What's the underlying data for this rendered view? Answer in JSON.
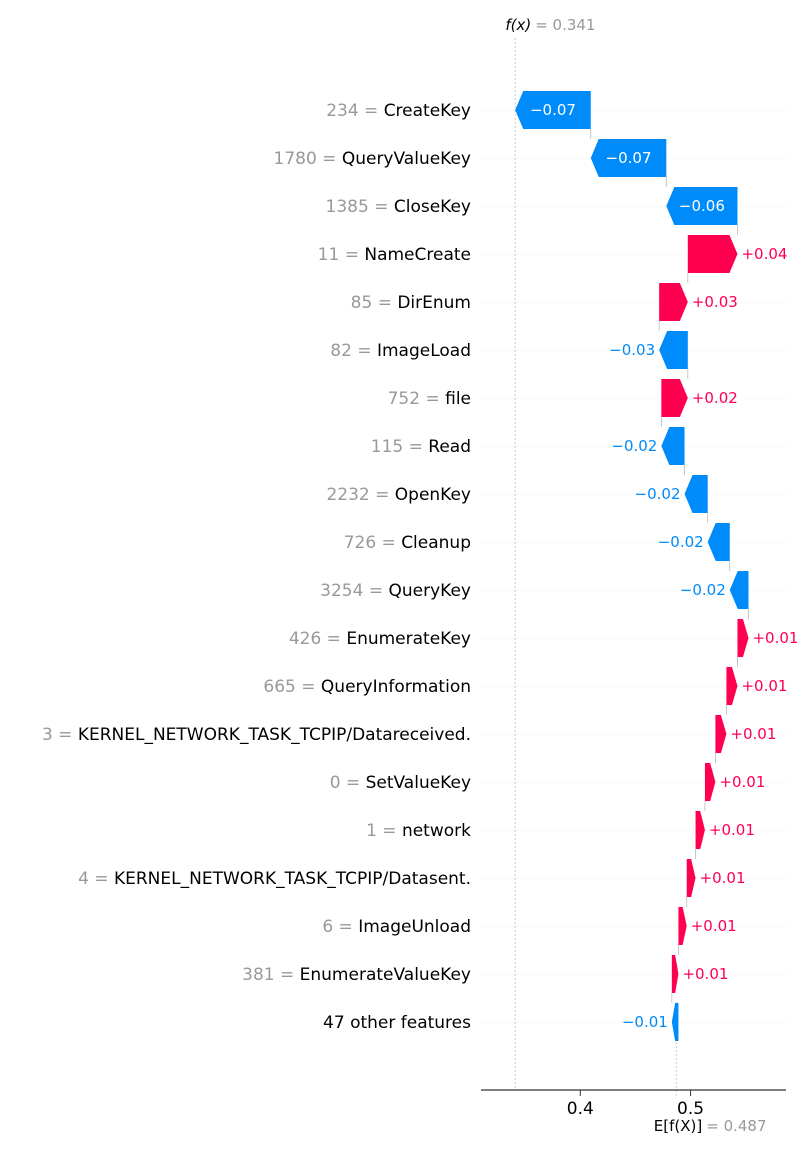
{
  "chart_data": {
    "type": "waterfall",
    "fx_label": "f(x)",
    "fx_value": "= 0.341",
    "efx_label": "E[f(X)]",
    "efx_value": "= 0.487",
    "fx_numeric": 0.341,
    "efx_numeric": 0.487,
    "xlim": [
      0.31,
      0.5865
    ],
    "x_ticks": [
      0.4,
      0.5
    ],
    "x_tick_labels": [
      "0.4",
      "0.5"
    ],
    "colors": {
      "positive": "#ff0051",
      "negative": "#008bfb",
      "value_text": "#999999"
    },
    "features": [
      {
        "value": "234",
        "name": "CreateKey",
        "contribution": -0.0685,
        "label": "−0.07"
      },
      {
        "value": "1780",
        "name": "QueryValueKey",
        "contribution": -0.0685,
        "label": "−0.07"
      },
      {
        "value": "1385",
        "name": "CloseKey",
        "contribution": -0.0645,
        "label": "−0.06"
      },
      {
        "value": "11",
        "name": "NameCreate",
        "contribution": 0.045,
        "label": "+0.04"
      },
      {
        "value": "85",
        "name": "DirEnum",
        "contribution": 0.026,
        "label": "+0.03"
      },
      {
        "value": "82",
        "name": "ImageLoad",
        "contribution": -0.026,
        "label": "−0.03"
      },
      {
        "value": "752",
        "name": "file",
        "contribution": 0.024,
        "label": "+0.02"
      },
      {
        "value": "115",
        "name": "Read",
        "contribution": -0.021,
        "label": "−0.02"
      },
      {
        "value": "2232",
        "name": "OpenKey",
        "contribution": -0.021,
        "label": "−0.02"
      },
      {
        "value": "726",
        "name": "Cleanup",
        "contribution": -0.02,
        "label": "−0.02"
      },
      {
        "value": "3254",
        "name": "QueryKey",
        "contribution": -0.017,
        "label": "−0.02"
      },
      {
        "value": "426",
        "name": "EnumerateKey",
        "contribution": 0.01,
        "label": "+0.01"
      },
      {
        "value": "665",
        "name": "QueryInformation",
        "contribution": 0.01,
        "label": "+0.01"
      },
      {
        "value": "3",
        "name": "KERNEL_NETWORK_TASK_TCPIP/Datareceived.",
        "contribution": 0.01,
        "label": "+0.01"
      },
      {
        "value": "0",
        "name": "SetValueKey",
        "contribution": 0.0095,
        "label": "+0.01"
      },
      {
        "value": "1",
        "name": "network",
        "contribution": 0.0085,
        "label": "+0.01"
      },
      {
        "value": "4",
        "name": "KERNEL_NETWORK_TASK_TCPIP/Datasent.",
        "contribution": 0.008,
        "label": "+0.01"
      },
      {
        "value": "6",
        "name": "ImageUnload",
        "contribution": 0.0075,
        "label": "+0.01"
      },
      {
        "value": "381",
        "name": "EnumerateValueKey",
        "contribution": 0.006,
        "label": "+0.01"
      },
      {
        "value": "",
        "name": "47 other features",
        "contribution": -0.006,
        "label": "−0.01"
      }
    ]
  }
}
